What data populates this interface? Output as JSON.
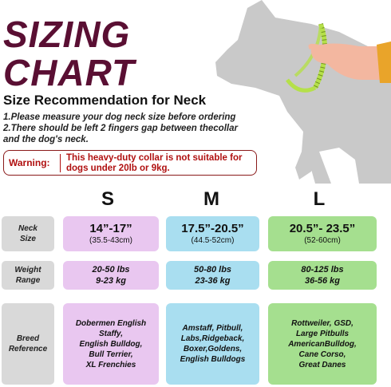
{
  "title_line1": "SIZING",
  "title_line2": "CHART",
  "subtitle": "Size Recommendation for Neck",
  "notes": [
    "1.Please measure your dog neck size before ordering",
    "2.There should be left 2 fingers gap between thecollar",
    "and the dog's neck."
  ],
  "warning": {
    "label": "Warning:",
    "text": "This heavy-duty collar is not suitable for dogs under 20lb or 9kg."
  },
  "row_labels": {
    "neck": [
      "Neck",
      "Size"
    ],
    "weight": [
      "Weight",
      "Range"
    ],
    "breed": [
      "Breed",
      "Reference"
    ]
  },
  "sizes": [
    {
      "name": "S",
      "neck_in": "14”-17”",
      "neck_cm": "(35.5-43cm)",
      "weight_lbs": "20-50 lbs",
      "weight_kg": "9-23 kg",
      "breeds": [
        "Dobermen English",
        "Staffy,",
        "English Bulldog,",
        "Bull Terrier,",
        "XL Frenchies"
      ]
    },
    {
      "name": "M",
      "neck_in": "17.5”-20.5”",
      "neck_cm": "(44.5-52cm)",
      "weight_lbs": "50-80 lbs",
      "weight_kg": "23-36 kg",
      "breeds": [
        "Amstaff, Pitbull,",
        "Labs,Ridgeback,",
        "Boxer,Goldens,",
        "English Bulldogs"
      ]
    },
    {
      "name": "L",
      "neck_in": "20.5”- 23.5”",
      "neck_cm": "(52-60cm)",
      "weight_lbs": "80-125 lbs",
      "weight_kg": "36-56 kg",
      "breeds": [
        "Rottweiler, GSD,",
        "Large Pitbulls",
        "AmericanBulldog,",
        "Cane Corso,",
        "Great Danes"
      ]
    }
  ],
  "colors": {
    "title": "#5a0f33",
    "warning": "#b01010",
    "s_cell": "#e9c7f0",
    "m_cell": "#a9def0",
    "l_cell": "#a5df8f",
    "label_cell": "#d9d9d9"
  }
}
